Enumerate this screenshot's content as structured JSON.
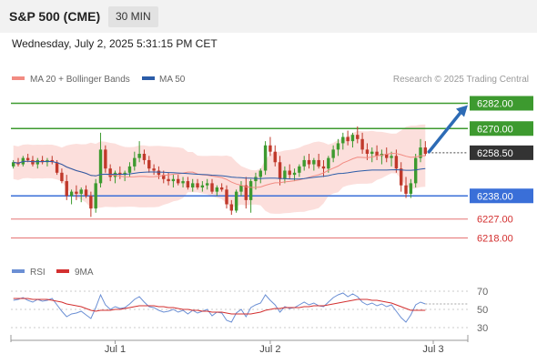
{
  "header": {
    "title": "S&P 500 (CME)",
    "timeframe": "30 MIN"
  },
  "datetime": "Wednesday, July 2, 2025 5:31:15 PM CET",
  "legend": {
    "bollinger": {
      "label": "MA 20 + Bollinger Bands",
      "color": "#f28b82"
    },
    "ma50": {
      "label": "MA 50",
      "color": "#2b5ca8"
    }
  },
  "copyright": "Research © 2025 Trading Central",
  "colors": {
    "up": "#3d9a2f",
    "down": "#c0392b",
    "support": "#3a6fd8",
    "resistance": "#3d9a2f",
    "thin_line": "#e57373",
    "arrow": "#2d6bb5",
    "rsi": "#6b8fd4",
    "rsi_signal": "#d32f2f"
  },
  "chart_data": [
    {
      "type": "candlestick",
      "title": "S&P 500 (CME)",
      "ylim": [
        6210,
        6290
      ],
      "x_ticks": [
        "Jul 1",
        "Jul 2",
        "Jul 3"
      ],
      "last_price": 6258.5,
      "levels": [
        {
          "value": 6282.0,
          "label": "6282.00",
          "kind": "resistance",
          "style": "box"
        },
        {
          "value": 6270.0,
          "label": "6270.00",
          "kind": "resistance",
          "style": "box"
        },
        {
          "value": 6258.5,
          "label": "6258.50",
          "kind": "last",
          "style": "box"
        },
        {
          "value": 6238.0,
          "label": "6238.00",
          "kind": "support",
          "style": "box"
        },
        {
          "value": 6227.0,
          "label": "6227.00",
          "kind": "support",
          "style": "text"
        },
        {
          "value": 6218.0,
          "label": "6218.00",
          "kind": "support",
          "style": "text"
        }
      ],
      "forecast_arrow": {
        "from": 6258.5,
        "to": 6282.0
      },
      "candles": [
        [
          6252,
          6255,
          6251,
          6254
        ],
        [
          6254,
          6256,
          6252,
          6253
        ],
        [
          6253,
          6257,
          6252,
          6256
        ],
        [
          6256,
          6258,
          6254,
          6255
        ],
        [
          6255,
          6257,
          6252,
          6253
        ],
        [
          6253,
          6256,
          6251,
          6255
        ],
        [
          6255,
          6257,
          6253,
          6254
        ],
        [
          6254,
          6256,
          6252,
          6255
        ],
        [
          6255,
          6257,
          6253,
          6254
        ],
        [
          6254,
          6255,
          6248,
          6249
        ],
        [
          6249,
          6251,
          6244,
          6245
        ],
        [
          6245,
          6248,
          6236,
          6238
        ],
        [
          6238,
          6241,
          6234,
          6240
        ],
        [
          6240,
          6243,
          6236,
          6239
        ],
        [
          6239,
          6242,
          6235,
          6241
        ],
        [
          6241,
          6243,
          6237,
          6238
        ],
        [
          6238,
          6240,
          6228,
          6232
        ],
        [
          6232,
          6246,
          6230,
          6244
        ],
        [
          6244,
          6268,
          6242,
          6260
        ],
        [
          6260,
          6262,
          6249,
          6251
        ],
        [
          6251,
          6253,
          6245,
          6247
        ],
        [
          6247,
          6250,
          6244,
          6249
        ],
        [
          6249,
          6252,
          6246,
          6248
        ],
        [
          6248,
          6250,
          6245,
          6249
        ],
        [
          6249,
          6254,
          6247,
          6252
        ],
        [
          6252,
          6259,
          6250,
          6256
        ],
        [
          6256,
          6264,
          6254,
          6258
        ],
        [
          6258,
          6260,
          6253,
          6255
        ],
        [
          6255,
          6257,
          6249,
          6251
        ],
        [
          6251,
          6253,
          6248,
          6250
        ],
        [
          6250,
          6252,
          6246,
          6248
        ],
        [
          6248,
          6250,
          6244,
          6246
        ],
        [
          6246,
          6249,
          6243,
          6245
        ],
        [
          6245,
          6248,
          6242,
          6246
        ],
        [
          6246,
          6248,
          6243,
          6244
        ],
        [
          6244,
          6247,
          6242,
          6245
        ],
        [
          6245,
          6247,
          6241,
          6242
        ],
        [
          6242,
          6246,
          6240,
          6244
        ],
        [
          6244,
          6246,
          6241,
          6242
        ],
        [
          6242,
          6245,
          6240,
          6243
        ],
        [
          6243,
          6246,
          6241,
          6244
        ],
        [
          6244,
          6246,
          6239,
          6240
        ],
        [
          6240,
          6243,
          6238,
          6242
        ],
        [
          6242,
          6244,
          6240,
          6241
        ],
        [
          6241,
          6243,
          6232,
          6234
        ],
        [
          6234,
          6236,
          6229,
          6231
        ],
        [
          6231,
          6241,
          6230,
          6240
        ],
        [
          6240,
          6245,
          6238,
          6243
        ],
        [
          6243,
          6247,
          6232,
          6236
        ],
        [
          6236,
          6246,
          6230,
          6245
        ],
        [
          6245,
          6249,
          6241,
          6247
        ],
        [
          6247,
          6251,
          6244,
          6250
        ],
        [
          6250,
          6264,
          6248,
          6262
        ],
        [
          6262,
          6266,
          6257,
          6259
        ],
        [
          6259,
          6262,
          6252,
          6254
        ],
        [
          6254,
          6257,
          6243,
          6246
        ],
        [
          6246,
          6252,
          6244,
          6250
        ],
        [
          6250,
          6253,
          6246,
          6248
        ],
        [
          6248,
          6251,
          6245,
          6249
        ],
        [
          6249,
          6253,
          6247,
          6252
        ],
        [
          6252,
          6257,
          6250,
          6255
        ],
        [
          6255,
          6258,
          6251,
          6253
        ],
        [
          6253,
          6256,
          6250,
          6255
        ],
        [
          6255,
          6258,
          6251,
          6252
        ],
        [
          6252,
          6255,
          6247,
          6251
        ],
        [
          6251,
          6257,
          6249,
          6256
        ],
        [
          6256,
          6262,
          6254,
          6260
        ],
        [
          6260,
          6265,
          6257,
          6263
        ],
        [
          6263,
          6268,
          6260,
          6266
        ],
        [
          6266,
          6269,
          6262,
          6264
        ],
        [
          6264,
          6268,
          6261,
          6267
        ],
        [
          6267,
          6271,
          6263,
          6265
        ],
        [
          6265,
          6268,
          6258,
          6260
        ],
        [
          6260,
          6263,
          6255,
          6258
        ],
        [
          6258,
          6261,
          6254,
          6259
        ],
        [
          6259,
          6262,
          6255,
          6257
        ],
        [
          6257,
          6260,
          6253,
          6258
        ],
        [
          6258,
          6261,
          6254,
          6256
        ],
        [
          6256,
          6259,
          6252,
          6257
        ],
        [
          6257,
          6260,
          6249,
          6251
        ],
        [
          6251,
          6254,
          6240,
          6243
        ],
        [
          6243,
          6247,
          6237,
          6239
        ],
        [
          6239,
          6246,
          6237,
          6244
        ],
        [
          6244,
          6258,
          6242,
          6256
        ],
        [
          6256,
          6265,
          6254,
          6261
        ],
        [
          6261,
          6264,
          6257,
          6258
        ]
      ]
    },
    {
      "type": "line",
      "title": "RSI",
      "series": [
        {
          "name": "RSI",
          "values": [
            60,
            61,
            63,
            60,
            58,
            61,
            59,
            60,
            62,
            55,
            48,
            42,
            45,
            46,
            48,
            44,
            40,
            52,
            66,
            55,
            50,
            53,
            51,
            52,
            56,
            61,
            64,
            58,
            53,
            52,
            49,
            47,
            48,
            50,
            47,
            49,
            45,
            49,
            46,
            48,
            50,
            43,
            47,
            46,
            38,
            36,
            46,
            50,
            42,
            52,
            55,
            57,
            66,
            60,
            55,
            47,
            53,
            51,
            52,
            55,
            58,
            55,
            57,
            54,
            53,
            58,
            63,
            66,
            68,
            64,
            67,
            64,
            58,
            55,
            57,
            54,
            56,
            53,
            55,
            48,
            41,
            36,
            44,
            55,
            58,
            56
          ]
        },
        {
          "name": "9MA",
          "values": [
            62,
            62,
            62,
            62,
            61,
            61,
            61,
            61,
            60,
            59,
            58,
            56,
            55,
            54,
            53,
            51,
            49,
            48,
            49,
            49,
            49,
            50,
            50,
            51,
            52,
            53,
            54,
            54,
            54,
            54,
            53,
            53,
            52,
            52,
            51,
            50,
            50,
            49,
            49,
            48,
            48,
            47,
            47,
            47,
            46,
            45,
            45,
            45,
            45,
            45,
            46,
            47,
            49,
            50,
            51,
            51,
            52,
            52,
            52,
            52,
            53,
            53,
            54,
            54,
            54,
            55,
            56,
            57,
            58,
            59,
            60,
            61,
            61,
            61,
            60,
            60,
            59,
            58,
            57,
            55,
            53,
            51,
            49,
            49,
            49,
            49
          ]
        }
      ],
      "ylim": [
        20,
        80
      ],
      "y_ticks": [
        70,
        50,
        30
      ]
    }
  ]
}
